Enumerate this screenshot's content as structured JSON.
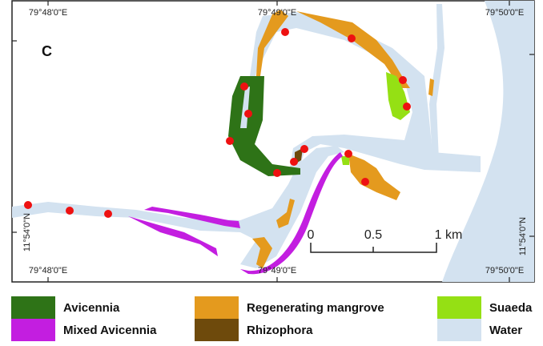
{
  "map": {
    "panel_label": "C",
    "top_ticks": [
      "79°48'0\"E",
      "79°49'0\"E",
      "79°50'0\"E"
    ],
    "bottom_ticks": [
      "79°48'0\"E",
      "79°49'0\"E",
      "79°50'0\"E"
    ],
    "left_tick": "11°54'0\"N",
    "right_tick": "11°54'0\"N",
    "scale_bar": {
      "labels": [
        "0",
        "0.5",
        "1 km"
      ]
    },
    "sample_point_count": 15,
    "colors": {
      "avicennia": "#2e7317",
      "mixed_avicennia": "#c31ee0",
      "regenerating": "#e49a1e",
      "rhizophora": "#6e4a0c",
      "suaeda": "#95e014",
      "water": "#d3e2f0",
      "sample_point": "#ee1111"
    }
  },
  "legend": [
    {
      "label": "Avicennia",
      "color": "#2e7317"
    },
    {
      "label": "Regenerating mangrove",
      "color": "#e49a1e"
    },
    {
      "label": "Suaeda",
      "color": "#95e014"
    },
    {
      "label": "Mixed Avicennia",
      "color": "#c31ee0"
    },
    {
      "label": "Rhizophora",
      "color": "#6e4a0c"
    },
    {
      "label": "Water",
      "color": "#d3e2f0"
    }
  ]
}
